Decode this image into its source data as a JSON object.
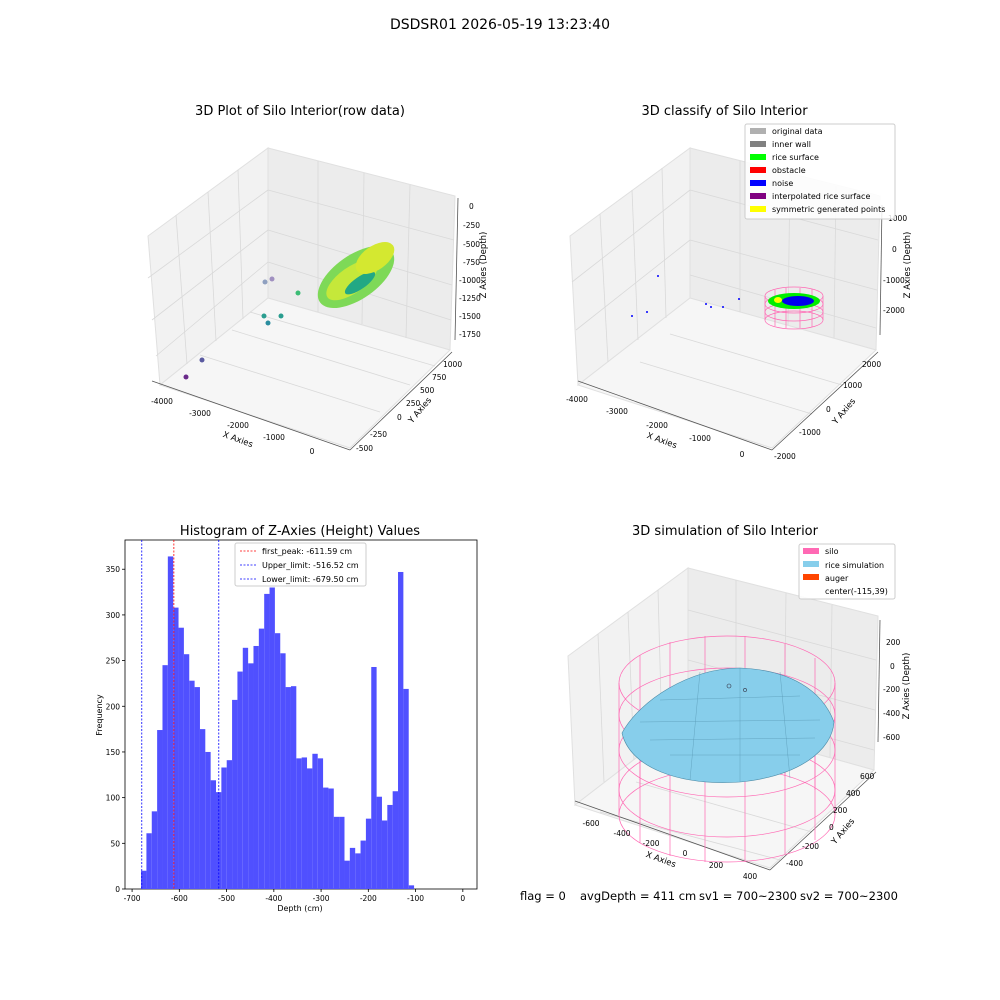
{
  "suptitle": "DSDSR01 2026-05-19 13:23:40",
  "panels": {
    "raw": {
      "title": "3D Plot of Silo Interior(row data)",
      "x_label": "X Axies",
      "y_label": "Y Axies",
      "z_label": "Z Axies (Depth)",
      "x_ticks": [
        "-4000",
        "-3000",
        "-2000",
        "-1000",
        "0"
      ],
      "y_ticks": [
        "-500",
        "-250",
        "0",
        "250",
        "500",
        "750",
        "1000"
      ],
      "z_ticks": [
        "0",
        "-250",
        "-500",
        "-750",
        "-1000",
        "-1250",
        "-1500",
        "-1750"
      ]
    },
    "classify": {
      "title": "3D classify of Silo Interior",
      "x_label": "X Axies",
      "y_label": "Y Axies",
      "z_label": "Z Axies (Depth)",
      "x_ticks": [
        "-4000",
        "-3000",
        "-2000",
        "-1000",
        "0"
      ],
      "y_ticks": [
        "-2000",
        "-1000",
        "0",
        "1000",
        "2000"
      ],
      "z_ticks": [
        "1000",
        "0",
        "-1000",
        "-2000"
      ],
      "legend": [
        {
          "label": "original data",
          "color": "#b0b0b0"
        },
        {
          "label": "inner wall",
          "color": "#808080"
        },
        {
          "label": "rice surface",
          "color": "#00ff00"
        },
        {
          "label": "obstacle",
          "color": "#ff0000"
        },
        {
          "label": "noise",
          "color": "#0000ff"
        },
        {
          "label": "interpolated rice surface",
          "color": "#800080"
        },
        {
          "label": "symmetric generated points",
          "color": "#ffff00"
        }
      ]
    },
    "simulation": {
      "title": "3D simulation of Silo Interior",
      "x_label": "X Axies",
      "y_label": "Y Axies",
      "z_label": "Z Axies (Depth)",
      "x_ticks": [
        "-600",
        "-400",
        "-200",
        "0",
        "200",
        "400"
      ],
      "y_ticks": [
        "-400",
        "-200",
        "0",
        "200",
        "400",
        "600"
      ],
      "z_ticks": [
        "200",
        "0",
        "-200",
        "-400",
        "-600"
      ],
      "legend": [
        {
          "label": "silo",
          "color": "#ff69b4"
        },
        {
          "label": "rice simulation",
          "color": "#87ceeb"
        },
        {
          "label": "auger",
          "color": "#ff4500"
        },
        {
          "label": "center(-115,39)",
          "color": ""
        }
      ]
    }
  },
  "chart_data": {
    "type": "bar",
    "title": "Histogram of Z-Axies (Height) Values",
    "xlabel": "Depth (cm)",
    "ylabel": "Frequency",
    "xlim": [
      -715,
      30
    ],
    "ylim": [
      0,
      382
    ],
    "x_ticks": [
      -700,
      -600,
      -500,
      -400,
      -300,
      -200,
      -100,
      0
    ],
    "y_ticks": [
      0,
      50,
      100,
      150,
      200,
      250,
      300,
      350
    ],
    "bin_start": -681,
    "bin_width": 11.33,
    "values": [
      20,
      61,
      85,
      174,
      245,
      364,
      308,
      286,
      257,
      228,
      221,
      175,
      150,
      119,
      106,
      133,
      141,
      207,
      238,
      264,
      247,
      266,
      285,
      323,
      330,
      280,
      258,
      221,
      222,
      143,
      144,
      132,
      148,
      143,
      111,
      110,
      79,
      79,
      31,
      45,
      39,
      53,
      77,
      243,
      101,
      75,
      92,
      107,
      347,
      219,
      4
    ],
    "bar_color": "#5050ff",
    "vlines": [
      {
        "label": "first_peak: -611.59 cm",
        "x": -611.59,
        "color": "#ff0000"
      },
      {
        "label": "Upper_limit: -516.52 cm",
        "x": -516.52,
        "color": "#0000ff"
      },
      {
        "label": "Lower_limit: -679.50 cm",
        "x": -679.5,
        "color": "#0000ff"
      }
    ]
  },
  "status": {
    "flag": "flag = 0",
    "avg_depth": "avgDepth = 411 cm",
    "sv1": "sv1 = 700~2300",
    "sv2": "sv2 = 700~2300"
  }
}
